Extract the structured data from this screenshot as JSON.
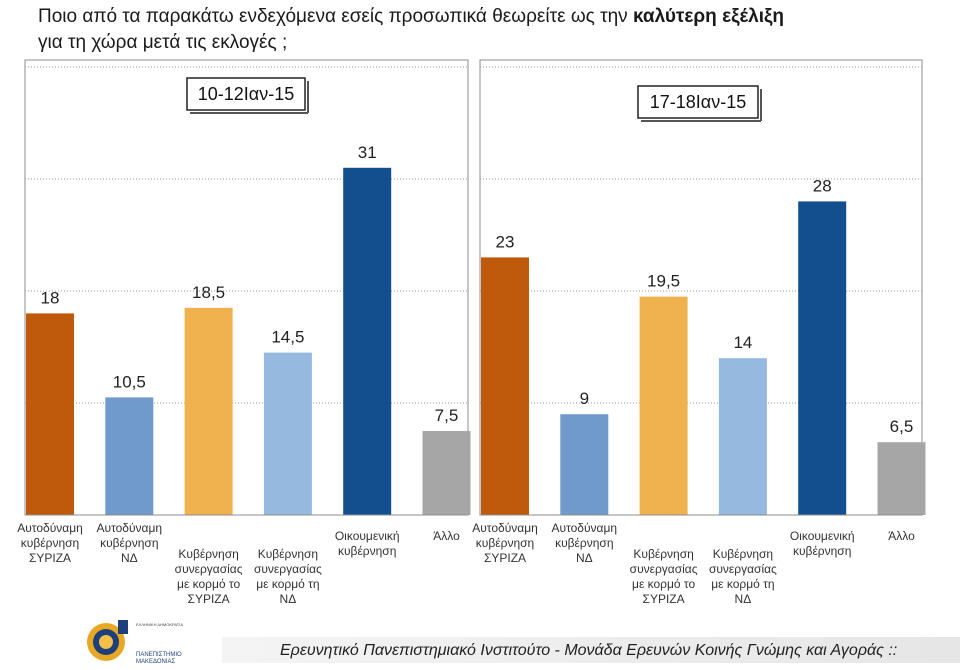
{
  "title": {
    "part1": "Ποιο από τα παρακάτω ενδεχόμενα εσείς προσωπικά θεωρείτε ως την ",
    "bold": "καλύτερη εξέλιξη",
    "line2": "για τη χώρα μετά τις εκλογές ;"
  },
  "footer": {
    "text": "Ερευνητικό Πανεπιστημιακό Ινστιτούτο - Μονάδα Ερευνών Κοινής Γνώμης και Αγοράς ::",
    "logo_text_1": "ΕΛΛΗΝΙΚΗ ΔΗΜΟΚΡΑΤΙΑ",
    "logo_text_2": "ΠΑΝΕΠΙΣΤΗΜΙΟ",
    "logo_text_3": "ΜΑΚΕΔΟΝΙΑΣ"
  },
  "chart_data": [
    {
      "type": "bar",
      "title": "10-12Ιαν-15",
      "categories": [
        [
          "Αυτοδύναμη",
          "κυβέρνηση",
          "ΣΥΡΙΖΑ"
        ],
        [
          "Αυτοδύναμη",
          "κυβέρνηση",
          "ΝΔ"
        ],
        [
          "Κυβέρνηση",
          "συνεργασίας",
          "με κορμό το",
          "ΣΥΡΙΖΑ"
        ],
        [
          "Κυβέρνηση",
          "συνεργασίας",
          "με κορμό τη",
          "ΝΔ"
        ],
        [
          "Οικουμενική",
          "κυβέρνηση"
        ],
        [
          "Άλλο"
        ]
      ],
      "values": [
        18,
        10.5,
        18.5,
        14.5,
        31,
        7.5
      ],
      "labels": [
        "18",
        "10,5",
        "18,5",
        "14,5",
        "31",
        "7,5"
      ],
      "colors": [
        "#bf5a0c",
        "#7099cc",
        "#efb24e",
        "#95b9df",
        "#134e8e",
        "#a6a6a6"
      ],
      "ylim": [
        0,
        40
      ],
      "grid": true
    },
    {
      "type": "bar",
      "title": "17-18Ιαν-15",
      "categories": [
        [
          "Αυτοδύναμη",
          "κυβέρνηση",
          "ΣΥΡΙΖΑ"
        ],
        [
          "Αυτοδύναμη",
          "κυβέρνηση",
          "ΝΔ"
        ],
        [
          "Κυβέρνηση",
          "συνεργασίας",
          "με κορμό το",
          "ΣΥΡΙΖΑ"
        ],
        [
          "Κυβέρνηση",
          "συνεργασίας",
          "με κορμό τη",
          "ΝΔ"
        ],
        [
          "Οικουμενική",
          "κυβέρνηση"
        ],
        [
          "Άλλο"
        ]
      ],
      "values": [
        23,
        9,
        19.5,
        14,
        28,
        6.5
      ],
      "labels": [
        "23",
        "9",
        "19,5",
        "14",
        "28",
        "6,5"
      ],
      "colors": [
        "#bf5a0c",
        "#7099cc",
        "#efb24e",
        "#95b9df",
        "#134e8e",
        "#a6a6a6"
      ],
      "ylim": [
        0,
        40
      ],
      "grid": true
    }
  ]
}
